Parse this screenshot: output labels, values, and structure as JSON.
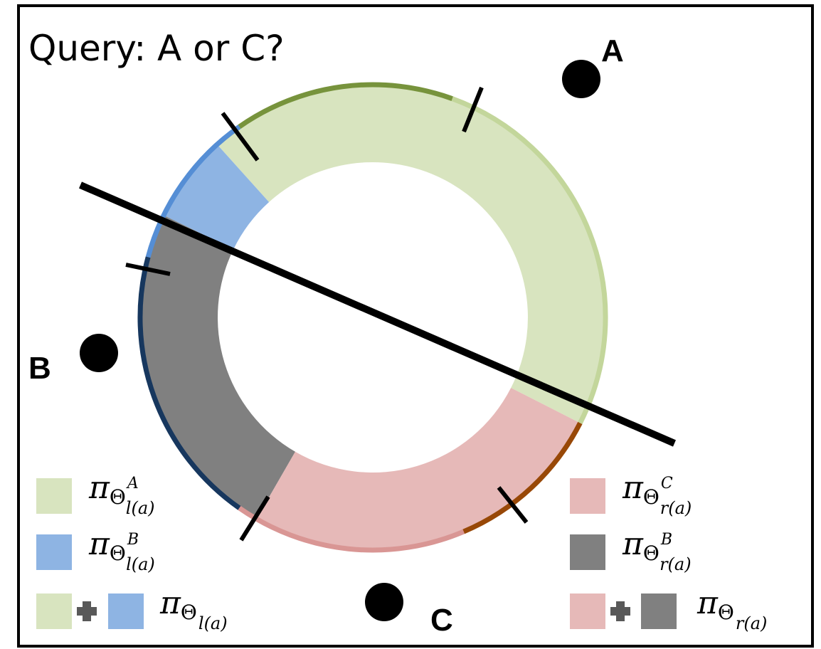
{
  "title": "Query: A or C?",
  "points": [
    {
      "id": "A",
      "label": "A"
    },
    {
      "id": "B",
      "label": "B"
    },
    {
      "id": "C",
      "label": "C"
    }
  ],
  "colors": {
    "green_fill": "#d8e4bf",
    "green_edge_dark": "#77933c",
    "green_edge_light": "#c3d69b",
    "blue_fill": "#8eb4e3",
    "blue_edge": "#558ed5",
    "gray_fill": "#808080",
    "navy_edge": "#17375e",
    "pink_fill": "#e6b9b8",
    "pink_edge": "#d99694",
    "brown_edge": "#984807"
  },
  "legend": {
    "left": [
      {
        "symbol": "π",
        "theta": "Θ",
        "sub": "l(a)",
        "sup": "A"
      },
      {
        "symbol": "π",
        "theta": "Θ",
        "sub": "l(a)",
        "sup": "B"
      },
      {
        "symbol": "π",
        "theta": "Θ",
        "sub": "l(a)",
        "sup": ""
      }
    ],
    "right": [
      {
        "symbol": "π",
        "theta": "Θ",
        "sub": "r(a)",
        "sup": "C"
      },
      {
        "symbol": "π",
        "theta": "Θ",
        "sub": "r(a)",
        "sup": "B"
      },
      {
        "symbol": "π",
        "theta": "Θ",
        "sub": "r(a)",
        "sup": ""
      }
    ],
    "plus_sign": "+"
  }
}
